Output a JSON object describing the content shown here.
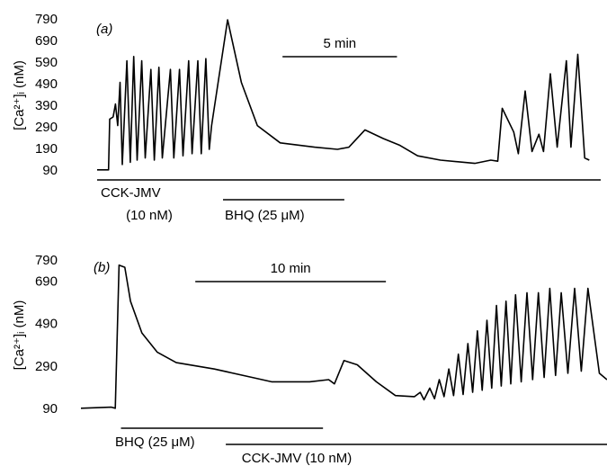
{
  "chart_data": [
    {
      "type": "line",
      "panel_label": "(a)",
      "y_label": "[Ca²⁺]ᵢ (nM)",
      "color": "#000000",
      "xlim": [
        0,
        22
      ],
      "ylim": [
        90,
        790
      ],
      "yticks": [
        90,
        190,
        290,
        390,
        490,
        590,
        690,
        790
      ],
      "scale_bar": {
        "label": "5 min",
        "x": [
          8.1,
          13.1
        ]
      },
      "annotations": [
        {
          "label": [
            "CCK-JMV",
            "(10 nM)"
          ],
          "x": [
            0,
            22
          ]
        },
        {
          "label": [
            "BHQ (25 μM)"
          ],
          "x": [
            5.5,
            10.8
          ]
        }
      ],
      "x": [
        0,
        0.5,
        0.55,
        0.7,
        0.8,
        0.9,
        1.0,
        1.1,
        1.3,
        1.45,
        1.6,
        1.75,
        1.95,
        2.1,
        2.35,
        2.5,
        2.7,
        2.85,
        3.2,
        3.35,
        3.6,
        3.75,
        4.0,
        4.15,
        4.4,
        4.55,
        4.75,
        4.9,
        5.0,
        5.7,
        6.3,
        7,
        8,
        9.5,
        10.5,
        11,
        11.7,
        12.5,
        13.2,
        14,
        15,
        16.5,
        17.2,
        17.5,
        17.7,
        18.2,
        18.4,
        18.7,
        19.0,
        19.3,
        19.5,
        19.8,
        20.1,
        20.5,
        20.7,
        21.0,
        21.3,
        21.5
      ],
      "values": [
        95,
        95,
        330,
        340,
        400,
        300,
        500,
        120,
        600,
        130,
        620,
        140,
        600,
        150,
        560,
        140,
        570,
        150,
        560,
        150,
        560,
        160,
        600,
        170,
        600,
        170,
        610,
        190,
        300,
        790,
        500,
        300,
        220,
        200,
        190,
        200,
        280,
        240,
        210,
        160,
        140,
        125,
        140,
        135,
        380,
        270,
        170,
        460,
        180,
        260,
        180,
        540,
        200,
        600,
        200,
        630,
        150,
        140
      ]
    },
    {
      "type": "line",
      "panel_label": "(b)",
      "y_label": "[Ca²⁺]ᵢ (nM)",
      "color": "#000000",
      "xlim": [
        0,
        27.6
      ],
      "ylim": [
        90,
        790
      ],
      "yticks": [
        90,
        290,
        490,
        690,
        790
      ],
      "scale_bar": {
        "label": "10 min",
        "x": [
          6.0,
          16.0
        ]
      },
      "annotations": [
        {
          "label": [
            "BHQ (25 μM)"
          ],
          "x": [
            2.1,
            12.7
          ]
        },
        {
          "label": [
            "CCK-JMV (10 nM)"
          ],
          "x": [
            7.6,
            27.6
          ]
        }
      ],
      "x": [
        0,
        1.6,
        1.8,
        2.0,
        2.3,
        2.6,
        3.2,
        4,
        5,
        7,
        9,
        10,
        12,
        13,
        13.3,
        13.8,
        14.5,
        15.5,
        16.5,
        17.5,
        17.8,
        18.0,
        18.3,
        18.55,
        18.8,
        19.05,
        19.3,
        19.55,
        19.8,
        20.05,
        20.3,
        20.55,
        20.8,
        21.05,
        21.3,
        21.55,
        21.8,
        22.05,
        22.3,
        22.55,
        22.8,
        23.1,
        23.4,
        23.7,
        24.0,
        24.3,
        24.6,
        24.9,
        25.2,
        25.55,
        25.9,
        26.25,
        26.6,
        27.2,
        27.6
      ],
      "values": [
        95,
        100,
        95,
        770,
        760,
        600,
        450,
        360,
        310,
        280,
        240,
        220,
        220,
        230,
        210,
        320,
        300,
        220,
        155,
        150,
        170,
        135,
        190,
        140,
        230,
        150,
        280,
        155,
        350,
        160,
        400,
        170,
        460,
        180,
        510,
        190,
        580,
        200,
        600,
        210,
        630,
        220,
        640,
        230,
        640,
        240,
        660,
        250,
        640,
        260,
        660,
        270,
        660,
        260,
        230
      ]
    }
  ]
}
